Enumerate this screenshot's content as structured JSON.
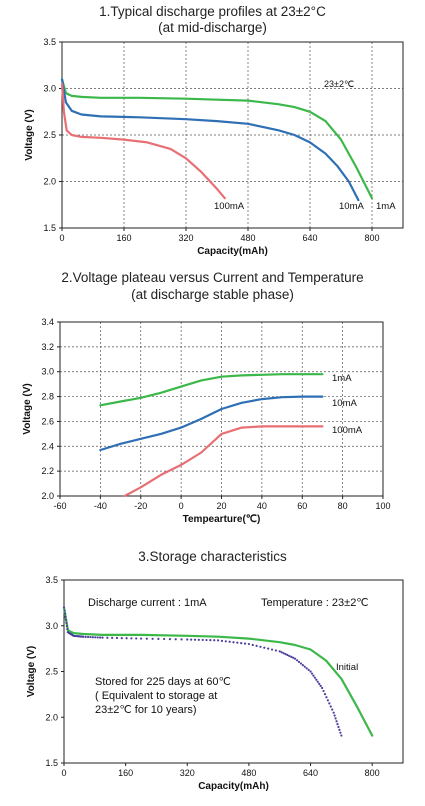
{
  "colors": {
    "green": "#3cb84a",
    "blue": "#2f6fb4",
    "red": "#e86f73",
    "purple": "#4a3f9c"
  },
  "chart_data": [
    {
      "type": "line",
      "title": "1.Typical discharge profiles at 23±2°C",
      "subtitle": "(at mid-discharge)",
      "xlabel": "Capacity(mAh)",
      "ylabel": "Voltage (V)",
      "xlim": [
        0,
        880
      ],
      "ylim": [
        1.5,
        3.5
      ],
      "xticks": [
        "0",
        "160",
        "320",
        "480",
        "640",
        "800"
      ],
      "yticks": [
        "1.5",
        "2.0",
        "2.5",
        "3.0",
        "3.5"
      ],
      "grid": true,
      "annotation": "23±2℃",
      "series": [
        {
          "name": "1mA",
          "color": "green",
          "x": [
            0,
            10,
            25,
            50,
            100,
            200,
            320,
            400,
            480,
            560,
            600,
            640,
            680,
            720,
            760,
            800
          ],
          "y": [
            3.1,
            2.95,
            2.92,
            2.91,
            2.9,
            2.9,
            2.89,
            2.88,
            2.87,
            2.83,
            2.8,
            2.75,
            2.65,
            2.45,
            2.15,
            1.82
          ]
        },
        {
          "name": "10mA",
          "color": "blue",
          "x": [
            0,
            10,
            25,
            50,
            100,
            200,
            320,
            400,
            480,
            560,
            600,
            640,
            680,
            710,
            740,
            765
          ],
          "y": [
            3.1,
            2.85,
            2.76,
            2.72,
            2.7,
            2.69,
            2.67,
            2.65,
            2.62,
            2.55,
            2.5,
            2.42,
            2.3,
            2.17,
            2.0,
            1.8
          ]
        },
        {
          "name": "100mA",
          "color": "red",
          "x": [
            0,
            5,
            12,
            25,
            50,
            100,
            160,
            220,
            280,
            320,
            360,
            400,
            420
          ],
          "y": [
            3.05,
            2.75,
            2.55,
            2.5,
            2.48,
            2.47,
            2.45,
            2.42,
            2.35,
            2.25,
            2.1,
            1.92,
            1.82
          ]
        }
      ]
    },
    {
      "type": "line",
      "title": "2.Voltage plateau versus Current and Temperature",
      "subtitle": "(at discharge stable phase)",
      "xlabel": "Tempearture(℃)",
      "ylabel": "Voltage (V)",
      "xlim": [
        -60,
        100
      ],
      "ylim": [
        2.0,
        3.4
      ],
      "xticks": [
        "-60",
        "-40",
        "-20",
        "0",
        "20",
        "40",
        "60",
        "80",
        "100"
      ],
      "yticks": [
        "2.0",
        "2.2",
        "2.4",
        "2.6",
        "2.8",
        "3.0",
        "3.2",
        "3.4"
      ],
      "grid": true,
      "series": [
        {
          "name": "1mA",
          "color": "green",
          "x": [
            -40,
            -30,
            -20,
            -10,
            0,
            10,
            20,
            30,
            40,
            50,
            60,
            70
          ],
          "y": [
            2.73,
            2.76,
            2.79,
            2.83,
            2.88,
            2.93,
            2.96,
            2.97,
            2.975,
            2.98,
            2.98,
            2.98
          ]
        },
        {
          "name": "10mA",
          "color": "blue",
          "x": [
            -40,
            -30,
            -20,
            -10,
            0,
            10,
            20,
            30,
            40,
            50,
            60,
            70
          ],
          "y": [
            2.37,
            2.42,
            2.46,
            2.5,
            2.55,
            2.62,
            2.7,
            2.75,
            2.78,
            2.795,
            2.8,
            2.8
          ]
        },
        {
          "name": "100mA",
          "color": "red",
          "x": [
            -28,
            -20,
            -10,
            0,
            10,
            20,
            30,
            40,
            50,
            60,
            70
          ],
          "y": [
            2.0,
            2.07,
            2.17,
            2.25,
            2.35,
            2.5,
            2.55,
            2.56,
            2.56,
            2.56,
            2.56
          ]
        }
      ]
    },
    {
      "type": "line",
      "title": "3.Storage characteristics",
      "xlabel": "Capacity(mAh)",
      "ylabel": "Voltage (V)",
      "xlim": [
        0,
        880
      ],
      "ylim": [
        1.5,
        3.5
      ],
      "xticks": [
        "0",
        "160",
        "320",
        "480",
        "640",
        "800"
      ],
      "yticks": [
        "1.5",
        "2.0",
        "2.5",
        "3.0",
        "3.5"
      ],
      "grid": false,
      "annotation_current": "Discharge current : 1mA",
      "annotation_temp": "Temperature : 23±2℃",
      "annotation_stored": [
        "Stored for 225 days at 60℃",
        "( Equivalent to storage at",
        "23±2℃  for 10 years)"
      ],
      "series": [
        {
          "name": "Initial",
          "color": "green",
          "style": "solid",
          "x": [
            0,
            10,
            25,
            50,
            100,
            200,
            320,
            400,
            480,
            560,
            600,
            640,
            680,
            720,
            760,
            800
          ],
          "y": [
            3.2,
            2.95,
            2.92,
            2.91,
            2.9,
            2.9,
            2.89,
            2.88,
            2.86,
            2.82,
            2.79,
            2.74,
            2.62,
            2.42,
            2.12,
            1.8
          ]
        },
        {
          "name": "",
          "color": "purple",
          "style": "dotted",
          "x": [
            0,
            10,
            25,
            50,
            100,
            200,
            320,
            400,
            480,
            560,
            600,
            640,
            670,
            700,
            720
          ],
          "y": [
            3.2,
            2.93,
            2.89,
            2.88,
            2.87,
            2.86,
            2.85,
            2.84,
            2.8,
            2.72,
            2.64,
            2.5,
            2.32,
            2.05,
            1.8
          ]
        }
      ]
    }
  ]
}
